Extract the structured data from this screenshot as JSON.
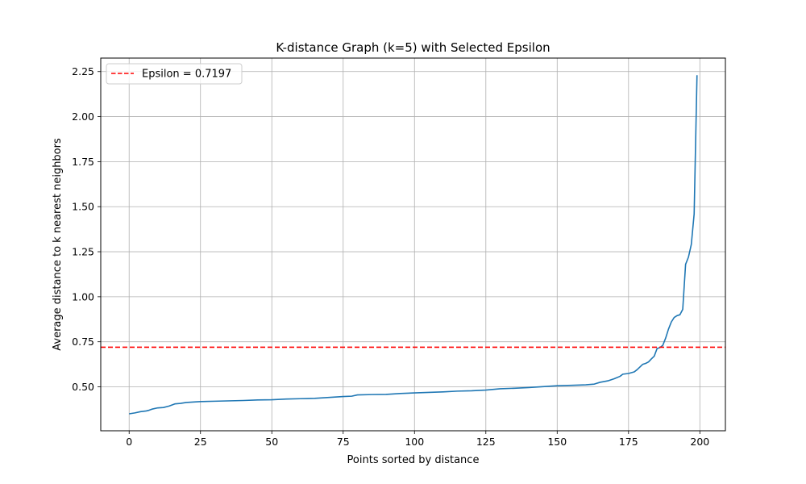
{
  "chart_data": {
    "type": "line",
    "title": "K-distance Graph (k=5) with Selected Epsilon",
    "xlabel": "Points sorted by distance",
    "ylabel": "Average distance to k nearest neighbors",
    "xlim": [
      -9.95,
      208.95
    ],
    "ylim": [
      0.256,
      2.325
    ],
    "xticks": [
      0,
      25,
      50,
      75,
      100,
      125,
      150,
      175,
      200
    ],
    "yticks": [
      0.5,
      0.75,
      1.0,
      1.25,
      1.5,
      1.75,
      2.0,
      2.25
    ],
    "grid": true,
    "legend_position": "upper-left",
    "series": [
      {
        "type": "line",
        "color": "#1f77b4",
        "points": [
          [
            0,
            0.35
          ],
          [
            2,
            0.355
          ],
          [
            4,
            0.362
          ],
          [
            6,
            0.366
          ],
          [
            7,
            0.37
          ],
          [
            8,
            0.376
          ],
          [
            10,
            0.383
          ],
          [
            12,
            0.385
          ],
          [
            14,
            0.393
          ],
          [
            16,
            0.405
          ],
          [
            18,
            0.408
          ],
          [
            20,
            0.413
          ],
          [
            25,
            0.418
          ],
          [
            30,
            0.42
          ],
          [
            40,
            0.424
          ],
          [
            45,
            0.427
          ],
          [
            50,
            0.428
          ],
          [
            55,
            0.432
          ],
          [
            60,
            0.434
          ],
          [
            65,
            0.436
          ],
          [
            70,
            0.441
          ],
          [
            75,
            0.446
          ],
          [
            78,
            0.448
          ],
          [
            80,
            0.455
          ],
          [
            85,
            0.457
          ],
          [
            90,
            0.458
          ],
          [
            95,
            0.463
          ],
          [
            100,
            0.466
          ],
          [
            105,
            0.469
          ],
          [
            110,
            0.472
          ],
          [
            115,
            0.476
          ],
          [
            120,
            0.478
          ],
          [
            125,
            0.482
          ],
          [
            130,
            0.489
          ],
          [
            135,
            0.492
          ],
          [
            140,
            0.496
          ],
          [
            145,
            0.501
          ],
          [
            150,
            0.506
          ],
          [
            155,
            0.508
          ],
          [
            160,
            0.511
          ],
          [
            163,
            0.515
          ],
          [
            165,
            0.525
          ],
          [
            168,
            0.534
          ],
          [
            170,
            0.545
          ],
          [
            172,
            0.558
          ],
          [
            173,
            0.57
          ],
          [
            175,
            0.574
          ],
          [
            177,
            0.583
          ],
          [
            178,
            0.595
          ],
          [
            179,
            0.61
          ],
          [
            180,
            0.625
          ],
          [
            181,
            0.63
          ],
          [
            182,
            0.638
          ],
          [
            183,
            0.655
          ],
          [
            184,
            0.67
          ],
          [
            185,
            0.712
          ],
          [
            186,
            0.718
          ],
          [
            187,
            0.73
          ],
          [
            188,
            0.77
          ],
          [
            189,
            0.82
          ],
          [
            190,
            0.86
          ],
          [
            191,
            0.885
          ],
          [
            192,
            0.895
          ],
          [
            193,
            0.9
          ],
          [
            194,
            0.93
          ],
          [
            195,
            1.18
          ],
          [
            196,
            1.22
          ],
          [
            197,
            1.29
          ],
          [
            198,
            1.46
          ],
          [
            199,
            2.23
          ]
        ]
      },
      {
        "type": "hline",
        "name": "Epsilon = 0.7197",
        "y": 0.7197,
        "color": "#ff0000",
        "dash": "dashed"
      }
    ]
  }
}
